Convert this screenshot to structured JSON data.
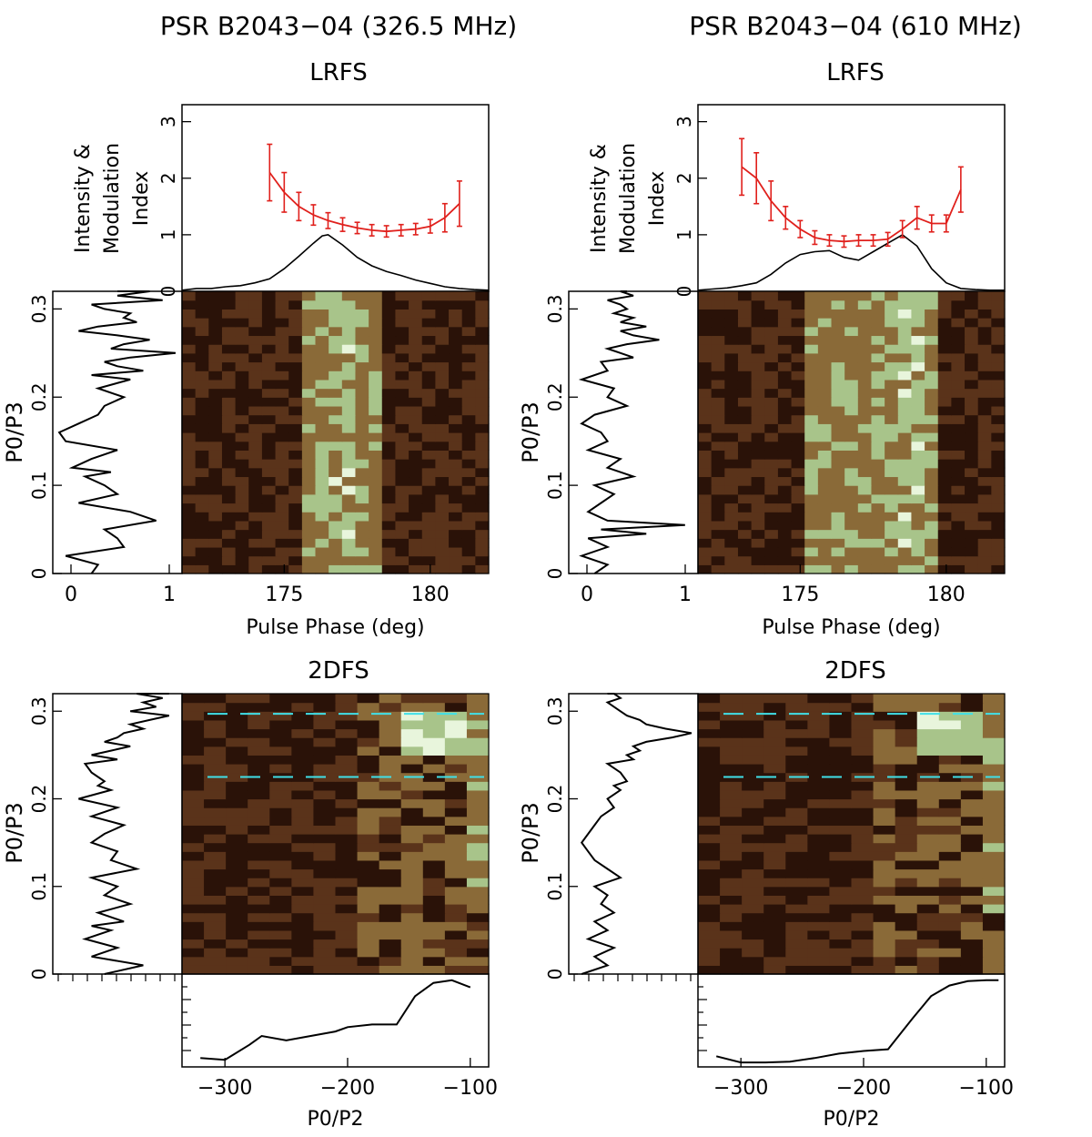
{
  "figure": {
    "left_title": "PSR B2043−04 (326.5 MHz)",
    "right_title": "PSR B2043−04 (610 MHz)"
  },
  "chart_data": [
    {
      "id": "left-lrfs",
      "type": "heatmap",
      "title": "LRFS",
      "xlabel": "Pulse Phase (deg)",
      "ylabel": "P0/P3",
      "profile_ylabel": [
        "Intensity &",
        "Modulation",
        "Index"
      ],
      "x_ticks": [
        "175",
        "180"
      ],
      "y_ticks": [
        "0",
        "0.1",
        "0.2",
        "0.3"
      ],
      "side_x_ticks": [
        "0",
        "1"
      ],
      "profile_y_ticks": [
        "0",
        "1",
        "2",
        "3"
      ],
      "xlim": [
        171.5,
        182.0
      ],
      "ylim": [
        0,
        0.32
      ],
      "profile_ylim": [
        0,
        3.3
      ],
      "intensity_profile": {
        "x": [
          171.5,
          172.0,
          172.5,
          173.0,
          173.5,
          174.0,
          174.5,
          175.0,
          175.5,
          176.0,
          176.3,
          176.5,
          177.0,
          177.5,
          178.0,
          178.5,
          179.0,
          179.5,
          180.0,
          180.5,
          181.0,
          181.5,
          182.0
        ],
        "y": [
          0.02,
          0.05,
          0.05,
          0.08,
          0.1,
          0.15,
          0.22,
          0.4,
          0.62,
          0.85,
          0.98,
          1.0,
          0.82,
          0.6,
          0.45,
          0.35,
          0.28,
          0.2,
          0.14,
          0.08,
          0.05,
          0.03,
          0.02
        ]
      },
      "modulation_index": {
        "x": [
          174.5,
          175.0,
          175.5,
          176.0,
          176.5,
          177.0,
          177.5,
          178.0,
          178.5,
          179.0,
          179.5,
          180.0,
          180.5,
          181.0
        ],
        "y": [
          2.1,
          1.75,
          1.5,
          1.35,
          1.25,
          1.18,
          1.12,
          1.08,
          1.06,
          1.08,
          1.1,
          1.15,
          1.3,
          1.55
        ],
        "error": [
          0.5,
          0.35,
          0.25,
          0.18,
          0.14,
          0.12,
          0.1,
          0.1,
          0.1,
          0.1,
          0.1,
          0.12,
          0.25,
          0.4
        ]
      },
      "side_spectrum": {
        "x": [
          0.3,
          0.35,
          0.1,
          0.55,
          0.5,
          0.4,
          0.8,
          0.6,
          0.2,
          0.5,
          0.4,
          0.25,
          0.45,
          0.15,
          0.3,
          0.5,
          0.1,
          0.05,
          0.2,
          0.35,
          0.4,
          0.55,
          0.35,
          0.6,
          0.3,
          0.7,
          0.5,
          0.4,
          0.6,
          0.95,
          0.45,
          0.55,
          0.75,
          0.5,
          0.2,
          0.35,
          0.65,
          0.55,
          0.6,
          0.4,
          0.3,
          0.85,
          0.5,
          0.75,
          0.5
        ],
        "y": [
          0.0,
          0.01,
          0.02,
          0.03,
          0.04,
          0.05,
          0.06,
          0.07,
          0.08,
          0.09,
          0.1,
          0.11,
          0.115,
          0.12,
          0.13,
          0.14,
          0.15,
          0.16,
          0.17,
          0.18,
          0.19,
          0.2,
          0.21,
          0.22,
          0.225,
          0.23,
          0.235,
          0.24,
          0.245,
          0.25,
          0.255,
          0.26,
          0.265,
          0.27,
          0.275,
          0.28,
          0.285,
          0.29,
          0.295,
          0.3,
          0.305,
          0.31,
          0.315,
          0.32,
          0.32
        ]
      },
      "heatmap": {
        "rows": 32,
        "cols": 23,
        "active_cols": [
          9,
          14
        ],
        "hot_cols": [
          11,
          12
        ],
        "palette": [
          "#2a1208",
          "#5a331a",
          "#8a6a38",
          "#a8c48a",
          "#e8f5dc"
        ]
      }
    },
    {
      "id": "right-lrfs",
      "type": "heatmap",
      "title": "LRFS",
      "xlabel": "Pulse Phase (deg)",
      "ylabel": "P0/P3",
      "profile_ylabel": [
        "Intensity &",
        "Modulation",
        "Index"
      ],
      "x_ticks": [
        "175",
        "180"
      ],
      "y_ticks": [
        "0",
        "0.1",
        "0.2",
        "0.3"
      ],
      "side_x_ticks": [
        "0",
        "1"
      ],
      "profile_y_ticks": [
        "0",
        "1",
        "2",
        "3"
      ],
      "xlim": [
        171.5,
        182.0
      ],
      "ylim": [
        0,
        0.32
      ],
      "profile_ylim": [
        0,
        3.3
      ],
      "intensity_profile": {
        "x": [
          171.5,
          172.0,
          172.5,
          173.0,
          173.5,
          174.0,
          174.5,
          175.0,
          175.5,
          176.0,
          176.5,
          177.0,
          177.5,
          178.0,
          178.5,
          179.0,
          179.5,
          180.0,
          180.5,
          181.0,
          181.5,
          182.0
        ],
        "y": [
          0.02,
          0.04,
          0.06,
          0.1,
          0.15,
          0.3,
          0.5,
          0.65,
          0.7,
          0.72,
          0.6,
          0.55,
          0.7,
          0.85,
          1.0,
          0.8,
          0.4,
          0.15,
          0.05,
          0.03,
          0.02,
          0.02
        ]
      },
      "modulation_index": {
        "x": [
          173.0,
          173.5,
          174.0,
          174.5,
          175.0,
          175.5,
          176.0,
          176.5,
          177.0,
          177.5,
          178.0,
          178.5,
          179.0,
          179.5,
          180.0,
          180.5
        ],
        "y": [
          2.2,
          2.0,
          1.6,
          1.3,
          1.1,
          0.95,
          0.9,
          0.88,
          0.9,
          0.9,
          0.92,
          1.1,
          1.3,
          1.2,
          1.2,
          1.8
        ],
        "error": [
          0.5,
          0.45,
          0.35,
          0.2,
          0.15,
          0.12,
          0.1,
          0.1,
          0.1,
          0.1,
          0.12,
          0.15,
          0.2,
          0.15,
          0.15,
          0.4
        ]
      },
      "side_spectrum": {
        "x": [
          0.2,
          0.3,
          0.1,
          0.3,
          0.15,
          0.6,
          0.25,
          0.9,
          0.3,
          0.15,
          0.25,
          0.35,
          0.2,
          0.5,
          0.3,
          0.4,
          0.15,
          0.3,
          0.25,
          0.1,
          0.2,
          0.45,
          0.3,
          0.35,
          0.1,
          0.3,
          0.25,
          0.5,
          0.4,
          0.3,
          0.45,
          0.7,
          0.5,
          0.4,
          0.6,
          0.4,
          0.5,
          0.35,
          0.45,
          0.4,
          0.3,
          0.5,
          0.4,
          0.45
        ],
        "y": [
          0.0,
          0.01,
          0.02,
          0.03,
          0.04,
          0.045,
          0.05,
          0.055,
          0.06,
          0.07,
          0.08,
          0.09,
          0.1,
          0.11,
          0.12,
          0.13,
          0.14,
          0.15,
          0.16,
          0.17,
          0.18,
          0.19,
          0.2,
          0.21,
          0.22,
          0.23,
          0.24,
          0.245,
          0.25,
          0.255,
          0.26,
          0.265,
          0.27,
          0.275,
          0.28,
          0.285,
          0.29,
          0.295,
          0.3,
          0.305,
          0.31,
          0.315,
          0.32,
          0.32
        ]
      },
      "heatmap": {
        "rows": 32,
        "cols": 23,
        "active_cols": [
          8,
          17
        ],
        "hot_cols": [
          15,
          16
        ],
        "palette": [
          "#2a1208",
          "#5a331a",
          "#8a6a38",
          "#a8c48a",
          "#e8f5dc"
        ]
      }
    },
    {
      "id": "left-2dfs",
      "type": "heatmap",
      "title": "2DFS",
      "xlabel": "P0/P2",
      "ylabel": "P0/P3",
      "x_ticks": [
        "−300",
        "−200",
        "−100"
      ],
      "y_ticks": [
        "0",
        "0.1",
        "0.2",
        "0.3"
      ],
      "xlim": [
        -335,
        -85
      ],
      "ylim": [
        0,
        0.32
      ],
      "dashed_lines_y": [
        0.297,
        0.225
      ],
      "side_spectrum": {
        "x": [
          0.4,
          0.7,
          0.3,
          0.5,
          0.25,
          0.45,
          0.3,
          0.55,
          0.35,
          0.6,
          0.4,
          0.5,
          0.3,
          0.65,
          0.45,
          0.5,
          0.3,
          0.4,
          0.55,
          0.3,
          0.5,
          0.2,
          0.45,
          0.35,
          0.4,
          0.3,
          0.25,
          0.5,
          0.3,
          0.45,
          0.6,
          0.4,
          0.5,
          0.55,
          0.7,
          0.6,
          0.75,
          0.9,
          0.6,
          0.8,
          0.7,
          0.85,
          0.65,
          0.9
        ],
        "y": [
          0.0,
          0.01,
          0.02,
          0.03,
          0.04,
          0.05,
          0.055,
          0.06,
          0.07,
          0.08,
          0.09,
          0.1,
          0.11,
          0.12,
          0.13,
          0.14,
          0.15,
          0.16,
          0.17,
          0.18,
          0.19,
          0.2,
          0.21,
          0.215,
          0.22,
          0.23,
          0.24,
          0.245,
          0.25,
          0.255,
          0.26,
          0.265,
          0.27,
          0.275,
          0.28,
          0.285,
          0.29,
          0.295,
          0.3,
          0.305,
          0.31,
          0.315,
          0.32,
          0.32
        ]
      },
      "bottom_spectrum": {
        "x": [
          -320,
          -300,
          -280,
          -270,
          -250,
          -230,
          -210,
          -200,
          -180,
          -160,
          -145,
          -130,
          -115,
          -100
        ],
        "y": [
          0.1,
          0.08,
          0.25,
          0.35,
          0.3,
          0.35,
          0.4,
          0.45,
          0.48,
          0.48,
          0.8,
          0.95,
          0.98,
          0.9
        ]
      },
      "heatmap": {
        "rows": 32,
        "cols": 14,
        "bright_zone": {
          "col_from": 10,
          "row_from": 25,
          "row_to": 29
        },
        "palette": [
          "#2a1208",
          "#5a331a",
          "#8a6a38",
          "#a8c48a",
          "#e8f5dc"
        ]
      }
    },
    {
      "id": "right-2dfs",
      "type": "heatmap",
      "title": "2DFS",
      "xlabel": "P0/P2",
      "ylabel": "P0/P3",
      "x_ticks": [
        "−300",
        "−200",
        "−100"
      ],
      "y_ticks": [
        "0",
        "0.1",
        "0.2",
        "0.3"
      ],
      "xlim": [
        -335,
        -85
      ],
      "ylim": [
        0,
        0.32
      ],
      "dashed_lines_y": [
        0.297,
        0.225
      ],
      "side_spectrum": {
        "x": [
          0.1,
          0.3,
          0.2,
          0.35,
          0.15,
          0.3,
          0.2,
          0.35,
          0.25,
          0.3,
          0.2,
          0.4,
          0.3,
          0.2,
          0.15,
          0.1,
          0.15,
          0.2,
          0.25,
          0.35,
          0.3,
          0.4,
          0.35,
          0.45,
          0.4,
          0.3,
          0.5,
          0.45,
          0.55,
          0.5,
          0.6,
          0.8,
          0.95,
          0.75,
          0.6,
          0.55,
          0.45,
          0.4,
          0.35,
          0.3,
          0.4,
          0.35,
          0.3
        ],
        "y": [
          0.0,
          0.01,
          0.02,
          0.03,
          0.04,
          0.05,
          0.06,
          0.07,
          0.08,
          0.09,
          0.1,
          0.11,
          0.12,
          0.13,
          0.14,
          0.15,
          0.16,
          0.17,
          0.18,
          0.19,
          0.2,
          0.21,
          0.215,
          0.22,
          0.23,
          0.24,
          0.245,
          0.25,
          0.255,
          0.26,
          0.265,
          0.27,
          0.275,
          0.28,
          0.285,
          0.29,
          0.295,
          0.3,
          0.305,
          0.31,
          0.315,
          0.32,
          0.32
        ]
      },
      "bottom_spectrum": {
        "x": [
          -320,
          -300,
          -280,
          -260,
          -240,
          -220,
          -200,
          -180,
          -160,
          -145,
          -130,
          -115,
          -100,
          -90
        ],
        "y": [
          0.12,
          0.05,
          0.05,
          0.06,
          0.1,
          0.15,
          0.18,
          0.2,
          0.55,
          0.8,
          0.92,
          0.97,
          0.98,
          0.98
        ]
      },
      "heatmap": {
        "rows": 32,
        "cols": 14,
        "bright_zone": {
          "col_from": 10,
          "row_from": 25,
          "row_to": 29
        },
        "palette": [
          "#2a1208",
          "#5a331a",
          "#8a6a38",
          "#a8c48a",
          "#e8f5dc"
        ]
      }
    }
  ]
}
